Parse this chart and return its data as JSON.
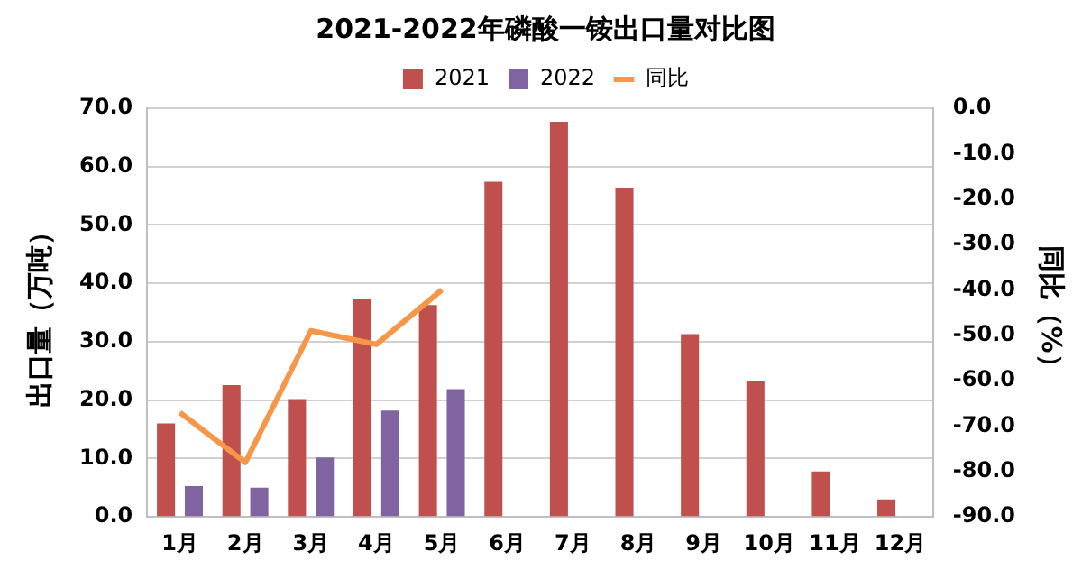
{
  "chart_data": {
    "type": "bar",
    "title": "2021-2022年磷酸一铵出口量对比图",
    "ylabel": "出口量（万吨）",
    "y2label": "同比（%）",
    "categories": [
      "1月",
      "2月",
      "3月",
      "4月",
      "5月",
      "6月",
      "7月",
      "8月",
      "9月",
      "10月",
      "11月",
      "12月"
    ],
    "series": [
      {
        "name": "2021",
        "color": "#c0504d",
        "values": [
          16.0,
          22.6,
          20.2,
          37.4,
          36.3,
          57.4,
          67.7,
          56.3,
          31.3,
          23.3,
          7.8,
          3.0
        ]
      },
      {
        "name": "2022",
        "color": "#8064a2",
        "values": [
          5.3,
          5.0,
          10.2,
          18.2,
          21.9,
          null,
          null,
          null,
          null,
          null,
          null,
          null
        ]
      },
      {
        "name": "同比",
        "type": "line",
        "axis": "y2",
        "color": "#f79646",
        "values": [
          -67,
          -78,
          -49,
          -52,
          -40,
          null,
          null,
          null,
          null,
          null,
          null,
          null
        ]
      }
    ],
    "ylim": [
      0,
      70
    ],
    "yticks": [
      {
        "value": 0,
        "label": "0.0"
      },
      {
        "value": 10,
        "label": "10.0"
      },
      {
        "value": 20,
        "label": "20.0"
      },
      {
        "value": 30,
        "label": "30.0"
      },
      {
        "value": 40,
        "label": "40.0"
      },
      {
        "value": 50,
        "label": "50.0"
      },
      {
        "value": 60,
        "label": "60.0"
      },
      {
        "value": 70,
        "label": "70.0"
      }
    ],
    "y2lim": [
      -90,
      0
    ],
    "y2ticks": [
      {
        "value": 0,
        "label": "0.0"
      },
      {
        "value": -10,
        "label": "-10.0"
      },
      {
        "value": -20,
        "label": "-20.0"
      },
      {
        "value": -30,
        "label": "-30.0"
      },
      {
        "value": -40,
        "label": "-40.0"
      },
      {
        "value": -50,
        "label": "-50.0"
      },
      {
        "value": -60,
        "label": "-60.0"
      },
      {
        "value": -70,
        "label": "-70.0"
      },
      {
        "value": -80,
        "label": "-80.0"
      },
      {
        "value": -90,
        "label": "-90.0"
      }
    ],
    "grid": "y",
    "legend": "top",
    "marker": "none"
  }
}
